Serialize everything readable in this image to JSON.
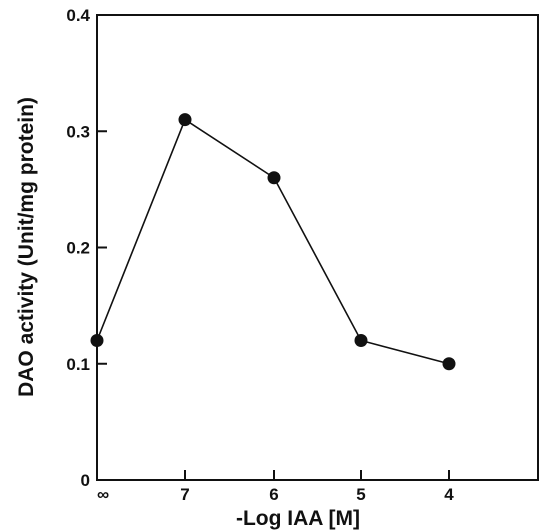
{
  "chart_data": {
    "type": "line",
    "xlabel": "-Log IAA [M]",
    "ylabel": "DAO activity (Unit/mg protein)",
    "categories": [
      "∞",
      "7",
      "6",
      "5",
      "4"
    ],
    "x_tick_labels": [
      "∞",
      "7",
      "6",
      "5",
      "4"
    ],
    "y_ticks": [
      0,
      0.1,
      0.2,
      0.3,
      0.4
    ],
    "y_tick_labels": [
      "0",
      "0.1",
      "0.2",
      "0.3",
      "0.4"
    ],
    "ylim": [
      0,
      0.4
    ],
    "grid": false,
    "legend": "none",
    "series": [
      {
        "values": [
          0.12,
          0.31,
          0.26,
          0.12,
          0.1
        ]
      }
    ]
  }
}
